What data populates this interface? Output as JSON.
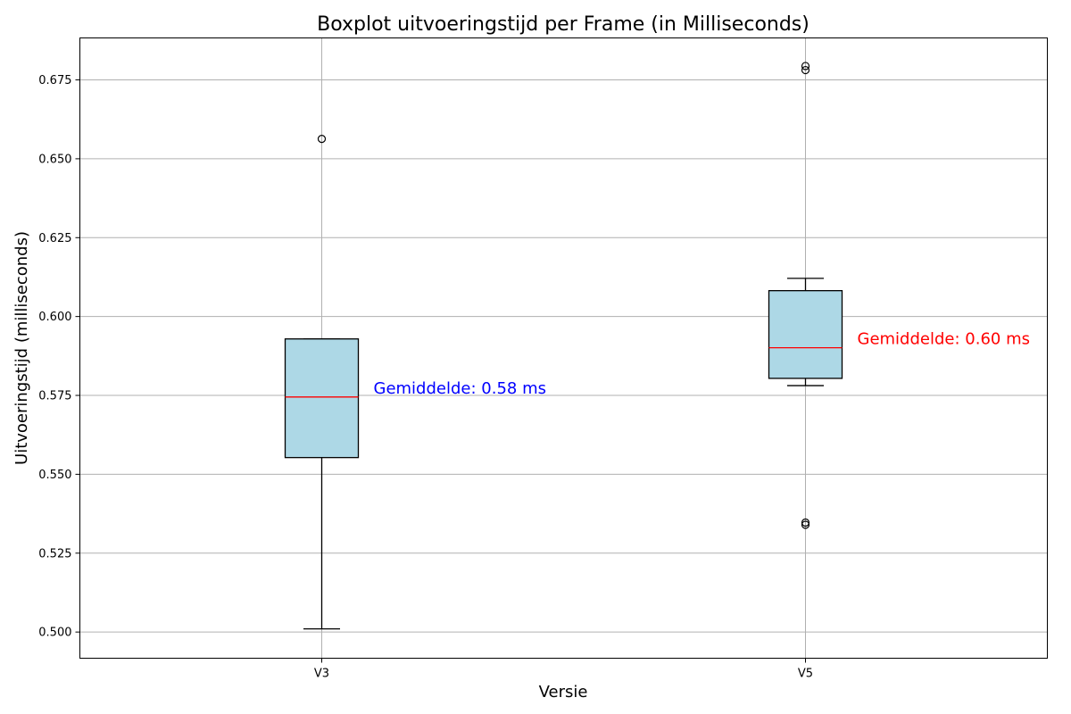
{
  "chart_data": {
    "type": "boxplot",
    "title": "Boxplot uitvoeringstijd per Frame (in Milliseconds)",
    "xlabel": "Versie",
    "ylabel": "Uitvoeringstijd (milliseconds)",
    "ylim": [
      0.4917,
      0.6883
    ],
    "yticks": [
      "0.500",
      "0.525",
      "0.550",
      "0.575",
      "0.600",
      "0.625",
      "0.650",
      "0.675"
    ],
    "grid": true,
    "categories": [
      "V3",
      "V5"
    ],
    "boxes": [
      {
        "category": "V3",
        "whisker_low": 0.501,
        "q1": 0.5553,
        "median": 0.5745,
        "q3": 0.5929,
        "whisker_high": 0.5929,
        "outliers": [
          0.6563
        ],
        "mean_label": "Gemiddelde: 0.58 ms",
        "mean_label_color": "#0000ff"
      },
      {
        "category": "V5",
        "whisker_low": 0.5781,
        "q1": 0.5804,
        "median": 0.5901,
        "q3": 0.6082,
        "whisker_high": 0.6121,
        "outliers": [
          0.6794,
          0.6781,
          0.5347,
          0.534
        ],
        "mean_label": "Gemiddelde: 0.60 ms",
        "mean_label_color": "#ff0000"
      }
    ],
    "colors": {
      "box_fill": "#add8e6",
      "median": "#ff0000",
      "grid": "#b0b0b0",
      "frame": "#000000"
    }
  }
}
